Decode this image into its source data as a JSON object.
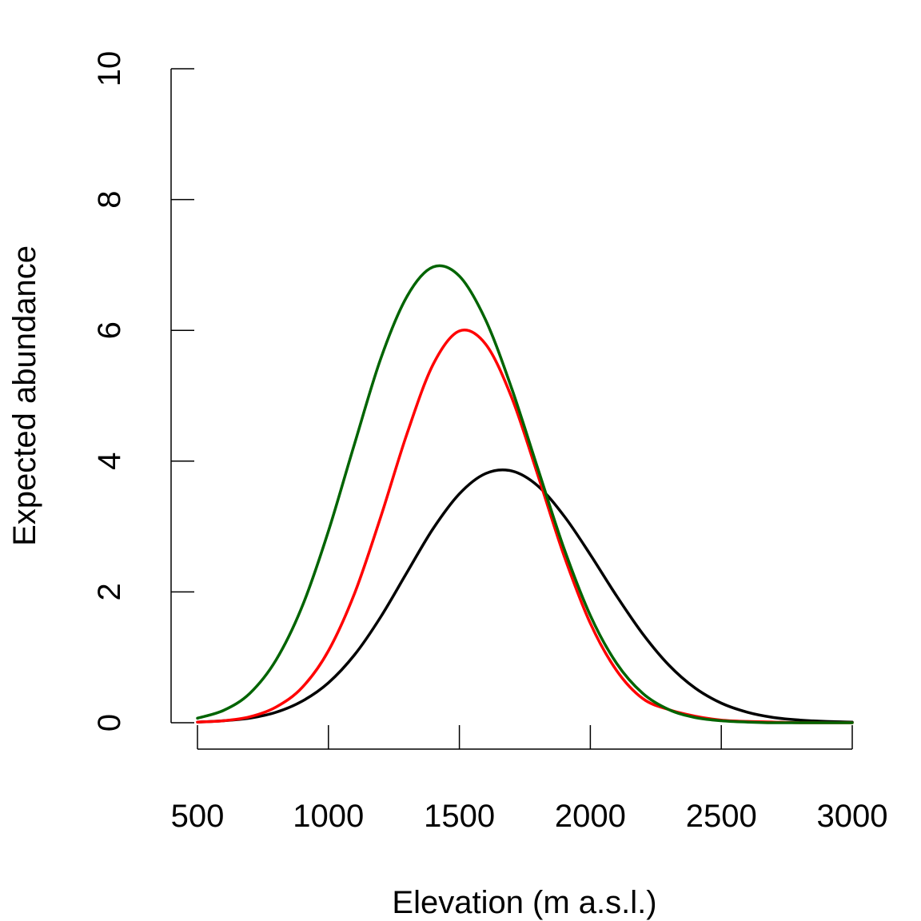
{
  "chart_data": {
    "type": "line",
    "title": "",
    "xlabel": "Elevation (m a.s.l.)",
    "ylabel": "Expected abundance",
    "xlim": [
      500,
      3000
    ],
    "ylim": [
      0,
      10
    ],
    "x_ticks": [
      500,
      1000,
      1500,
      2000,
      2500,
      3000
    ],
    "y_ticks": [
      0,
      2,
      4,
      6,
      8,
      10
    ],
    "grid": false,
    "legend": "none",
    "x": [
      500,
      600,
      700,
      800,
      900,
      1000,
      1100,
      1200,
      1300,
      1400,
      1500,
      1600,
      1700,
      1800,
      1900,
      2000,
      2100,
      2200,
      2300,
      2400,
      2500,
      2600,
      2700,
      2800,
      2900,
      3000
    ],
    "series": [
      {
        "color": "#000000",
        "values": [
          0.01,
          0.03,
          0.07,
          0.16,
          0.33,
          0.61,
          1.04,
          1.62,
          2.3,
          2.97,
          3.5,
          3.81,
          3.85,
          3.62,
          3.16,
          2.57,
          1.94,
          1.36,
          0.88,
          0.53,
          0.3,
          0.16,
          0.08,
          0.04,
          0.02,
          0.01
        ]
      },
      {
        "color": "#ff0000",
        "values": [
          0.01,
          0.03,
          0.09,
          0.24,
          0.54,
          1.1,
          1.98,
          3.15,
          4.42,
          5.48,
          5.99,
          5.79,
          4.97,
          3.78,
          2.55,
          1.52,
          0.8,
          0.37,
          0.2,
          0.1,
          0.04,
          0.02,
          0.01,
          0.0,
          0.0,
          0.0
        ]
      },
      {
        "color": "#006400",
        "values": [
          0.07,
          0.19,
          0.45,
          0.96,
          1.78,
          2.93,
          4.27,
          5.57,
          6.52,
          6.97,
          6.83,
          6.16,
          5.11,
          3.88,
          2.66,
          1.64,
          0.91,
          0.45,
          0.2,
          0.08,
          0.03,
          0.01,
          0.0,
          0.0,
          0.0,
          0.0
        ]
      }
    ]
  }
}
